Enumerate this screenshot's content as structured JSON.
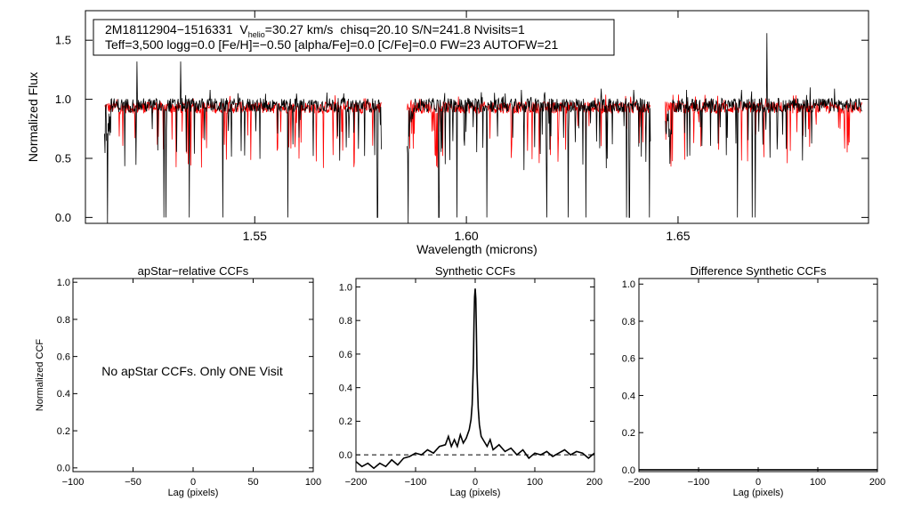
{
  "colors": {
    "observed": "#000000",
    "model": "#ff0000",
    "axis": "#000000"
  },
  "info_box": {
    "star_id": "2M18112904−1516331",
    "v_label": "V",
    "v_sub": "helio",
    "v_value": "=30.27 km/s",
    "stats": "chisq=20.10  S/N=241.8  Nvisits=1",
    "line2": "Teff=3,500 logg=0.0 [Fe/H]=−0.50 [alpha/Fe]=0.0 [C/Fe]=0.0 FW=23 AUTOFW=21"
  },
  "annotation": "No apStar CCFs.  Only ONE Visit",
  "chart_data": [
    {
      "id": "spectrum",
      "type": "line",
      "title": "",
      "xlabel": "Wavelength (microns)",
      "ylabel": "Normalized Flux",
      "xlim": [
        1.51,
        1.695
      ],
      "ylim": [
        -0.05,
        1.75
      ],
      "xticks": [
        1.55,
        1.6,
        1.65
      ],
      "xtick_labels": [
        "1.55",
        "1.60",
        "1.65"
      ],
      "yticks": [
        0.0,
        0.5,
        1.0,
        1.5
      ],
      "ytick_labels": [
        "0.0",
        "0.5",
        "1.0",
        "1.5"
      ],
      "chip_ranges": [
        [
          1.5145,
          1.58
        ],
        [
          1.586,
          1.6435
        ],
        [
          1.647,
          1.6935
        ]
      ],
      "series": [
        {
          "name": "observed",
          "color": "#000000",
          "baseline": 0.95,
          "noise": 0.06,
          "deep_lines": [
            1.5152,
            1.5285,
            1.529,
            1.5345,
            1.5425,
            1.5578,
            1.579,
            1.5862,
            1.5935,
            1.5978,
            1.6048,
            1.613,
            1.619,
            1.624,
            1.6282,
            1.6378,
            1.6385,
            1.6432,
            1.664,
            1.6675,
            1.6682
          ],
          "spikes": [
            [
              1.5222,
              1.32
            ],
            [
              1.5325,
              1.32
            ],
            [
              1.5395,
              1.08
            ],
            [
              1.571,
              1.05
            ],
            [
              1.6035,
              1.06
            ],
            [
              1.613,
              1.08
            ],
            [
              1.6318,
              1.09
            ],
            [
              1.6395,
              1.08
            ],
            [
              1.652,
              1.08
            ],
            [
              1.665,
              1.08
            ],
            [
              1.671,
              1.56
            ],
            [
              1.6812,
              1.1
            ],
            [
              1.687,
              1.09
            ]
          ]
        },
        {
          "name": "model",
          "color": "#ff0000",
          "baseline": 0.93,
          "noise": 0.05,
          "deep_lines": [],
          "spikes": []
        }
      ]
    },
    {
      "id": "apstar",
      "type": "line",
      "title": "apStar−relative CCFs",
      "xlabel": "Lag (pixels)",
      "ylabel": "Normalized CCF",
      "xlim": [
        -100,
        100
      ],
      "ylim": [
        -0.02,
        1.02
      ],
      "xticks": [
        -100,
        -50,
        0,
        50,
        100
      ],
      "xtick_labels": [
        "−100",
        "−50",
        "0",
        "50",
        "100"
      ],
      "yticks": [
        0.0,
        0.2,
        0.4,
        0.6,
        0.8,
        1.0
      ],
      "ytick_labels": [
        "0.0",
        "0.2",
        "0.4",
        "0.6",
        "0.8",
        "1.0"
      ],
      "series": []
    },
    {
      "id": "synthetic",
      "type": "line",
      "title": "Synthetic CCFs",
      "xlabel": "Lag (pixels)",
      "ylabel": "",
      "xlim": [
        -200,
        200
      ],
      "ylim": [
        -0.1,
        1.05
      ],
      "xticks": [
        -200,
        -100,
        0,
        100,
        200
      ],
      "xtick_labels": [
        "−200",
        "−100",
        "0",
        "100",
        "200"
      ],
      "yticks": [
        0.0,
        0.2,
        0.4,
        0.6,
        0.8,
        1.0
      ],
      "ytick_labels": [
        "0.0",
        "0.2",
        "0.4",
        "0.6",
        "0.8",
        "1.0"
      ],
      "zero_line": 0.0,
      "series": [
        {
          "name": "ccf",
          "color": "#000000",
          "x": [
            -200,
            -190,
            -180,
            -170,
            -160,
            -150,
            -140,
            -130,
            -120,
            -110,
            -100,
            -90,
            -80,
            -70,
            -60,
            -50,
            -45,
            -40,
            -35,
            -30,
            -25,
            -20,
            -15,
            -10,
            -7,
            -5,
            -3,
            -2,
            -1,
            0,
            1,
            2,
            3,
            5,
            7,
            10,
            15,
            20,
            25,
            30,
            40,
            50,
            60,
            70,
            80,
            90,
            100,
            110,
            120,
            130,
            140,
            150,
            160,
            170,
            180,
            190,
            200
          ],
          "y": [
            -0.04,
            -0.07,
            -0.05,
            -0.08,
            -0.05,
            -0.07,
            -0.03,
            -0.06,
            -0.02,
            -0.01,
            0.01,
            0.0,
            0.03,
            0.01,
            0.05,
            0.06,
            0.11,
            0.05,
            0.09,
            0.05,
            0.12,
            0.07,
            0.1,
            0.15,
            0.21,
            0.3,
            0.55,
            0.8,
            0.94,
            0.99,
            0.93,
            0.75,
            0.5,
            0.28,
            0.18,
            0.11,
            0.08,
            0.05,
            0.09,
            0.03,
            0.06,
            0.02,
            0.04,
            0.0,
            0.03,
            -0.02,
            0.01,
            0.0,
            0.02,
            -0.01,
            0.01,
            0.03,
            0.0,
            0.02,
            0.01,
            -0.02,
            0.01
          ]
        }
      ]
    },
    {
      "id": "difference",
      "type": "line",
      "title": "Difference Synthetic CCFs",
      "xlabel": "Lag (pixels)",
      "ylabel": "",
      "xlim": [
        -200,
        200
      ],
      "ylim": [
        -0.01,
        1.03
      ],
      "xticks": [
        -200,
        -100,
        0,
        100,
        200
      ],
      "xtick_labels": [
        "−200",
        "−100",
        "0",
        "100",
        "200"
      ],
      "yticks": [
        0.0,
        0.2,
        0.4,
        0.6,
        0.8,
        1.0
      ],
      "ytick_labels": [
        "0.0",
        "0.2",
        "0.4",
        "0.6",
        "0.8",
        "1.0"
      ],
      "series": [
        {
          "name": "ccf-diff",
          "color": "#000000",
          "x": [
            -200,
            200
          ],
          "y": [
            0.0,
            0.0
          ]
        }
      ]
    }
  ]
}
